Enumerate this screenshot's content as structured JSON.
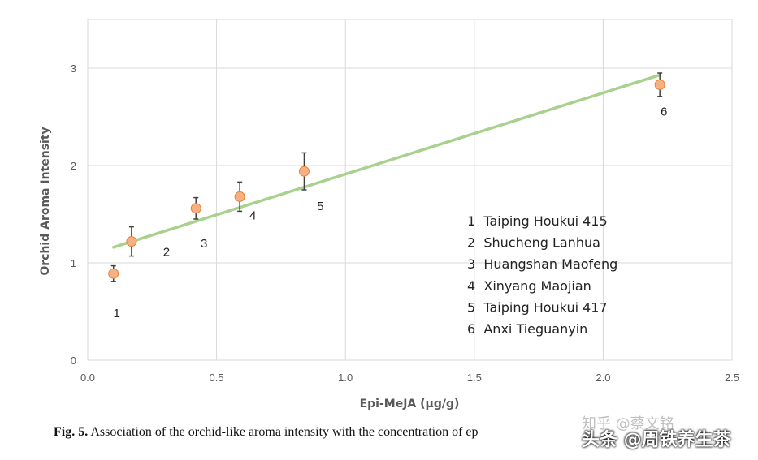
{
  "chart_data": {
    "type": "scatter",
    "xlabel": "Epi-MeJA (µg/g)",
    "ylabel": "Orchid Aroma Intensity",
    "xlim": [
      0,
      2.5
    ],
    "ylim": [
      0,
      3.5
    ],
    "xticks": [
      "0.0",
      "0.5",
      "1.0",
      "1.5",
      "2.0",
      "2.5"
    ],
    "yticks": [
      "0",
      "1",
      "2",
      "3"
    ],
    "grid": true,
    "point_color": "#f4b183",
    "point_edge": "#ed7d31",
    "trend_color": "#a9d18e",
    "points": [
      {
        "label": "1",
        "x": 0.1,
        "y": 0.89,
        "err": 0.08
      },
      {
        "label": "2",
        "x": 0.17,
        "y": 1.22,
        "err": 0.15
      },
      {
        "label": "3",
        "x": 0.42,
        "y": 1.56,
        "err": 0.11
      },
      {
        "label": "4",
        "x": 0.59,
        "y": 1.68,
        "err": 0.15
      },
      {
        "label": "5",
        "x": 0.84,
        "y": 1.94,
        "err": 0.19
      },
      {
        "label": "6",
        "x": 2.22,
        "y": 2.83,
        "err": 0.12
      }
    ],
    "trendline": {
      "x": [
        0.1,
        2.22
      ],
      "y": [
        1.16,
        2.93
      ]
    },
    "legend": [
      "1  Taiping Houkui 415",
      "2  Shucheng Lanhua",
      "3  Huangshan Maofeng",
      "4  Xinyang Maojian",
      "5  Taiping Houkui 417",
      "6  Anxi Tieguanyin"
    ]
  },
  "caption": {
    "label": "Fig. 5.",
    "text": " Association of the orchid-like aroma intensity with the concentration of ep"
  },
  "watermark": {
    "line1": "知乎 @蔡文铭",
    "line2": "头条 @周铁养生茶"
  }
}
